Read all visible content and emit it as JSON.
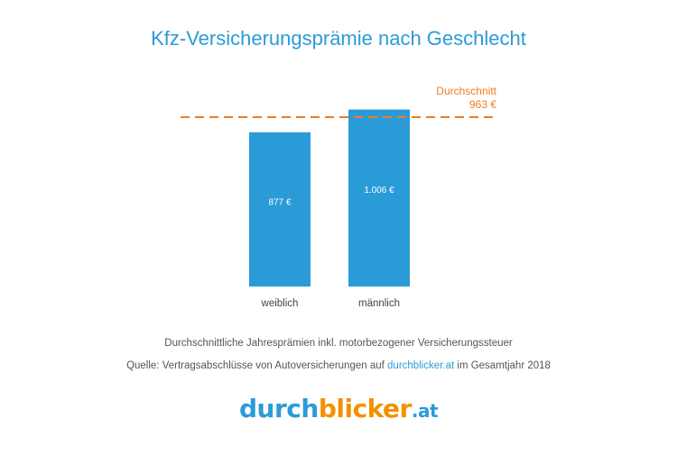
{
  "chart_data": {
    "type": "bar",
    "title": "Kfz-Versicherungsprämie nach Geschlecht",
    "categories": [
      "weiblich",
      "männlich"
    ],
    "values": [
      877,
      1006
    ],
    "value_labels": [
      "877 €",
      "1.006 €"
    ],
    "reference_line": {
      "value": 963,
      "label": "Durchschnitt",
      "value_label": "963 €",
      "color": "#f07d20",
      "style": "dashed"
    },
    "bar_color": "#2b9bd8",
    "grid": false,
    "ylim": [
      0,
      1050
    ]
  },
  "notes": {
    "line1": "Durchschnittliche Jahresprämien inkl. motorbezogener Versicherungssteuer",
    "line2_prefix": "Quelle: Vertragsabschlüsse von Autoversicherungen auf ",
    "line2_link": "durchblicker.at",
    "line2_suffix": " im Gesamtjahr 2018"
  },
  "logo": {
    "text": "durchblicker.at"
  },
  "colors": {
    "accent": "#2b9bd8",
    "orange": "#f39100"
  }
}
